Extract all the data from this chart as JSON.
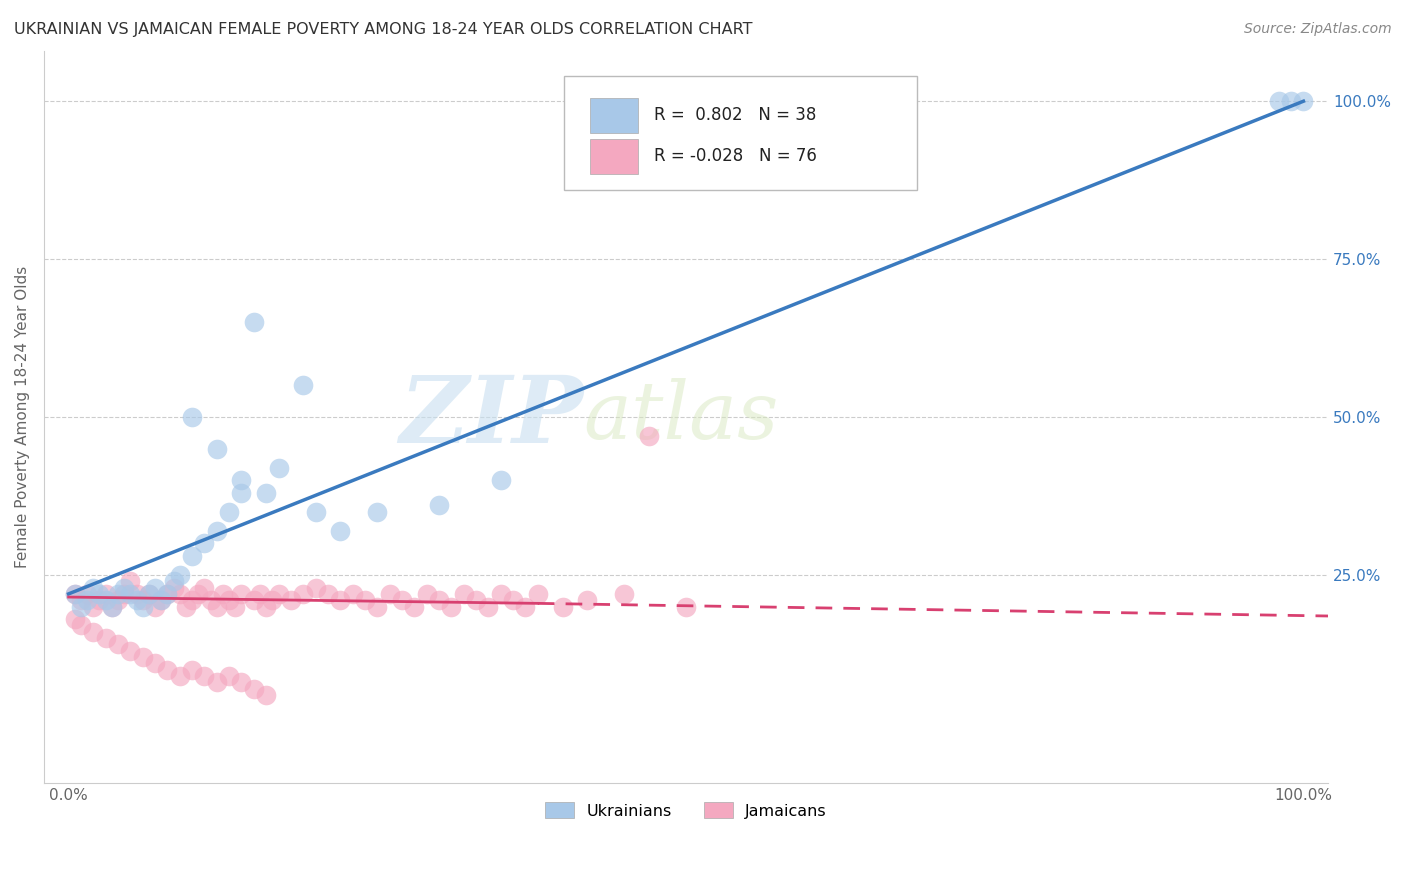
{
  "title": "UKRAINIAN VS JAMAICAN FEMALE POVERTY AMONG 18-24 YEAR OLDS CORRELATION CHART",
  "source": "Source: ZipAtlas.com",
  "ylabel": "Female Poverty Among 18-24 Year Olds",
  "xlim": [
    -0.02,
    1.02
  ],
  "ylim": [
    -0.08,
    1.08
  ],
  "x_ticks": [
    0.0,
    0.25,
    0.5,
    0.75,
    1.0
  ],
  "x_tick_labels": [
    "0.0%",
    "",
    "",
    "",
    "100.0%"
  ],
  "y_tick_labels_right": [
    "100.0%",
    "75.0%",
    "50.0%",
    "25.0%"
  ],
  "y_ticks_right": [
    1.0,
    0.75,
    0.5,
    0.25
  ],
  "ukrainian_R": 0.802,
  "ukrainian_N": 38,
  "jamaican_R": -0.028,
  "jamaican_N": 76,
  "ukrainian_color": "#a8c8e8",
  "jamaican_color": "#f4a8c0",
  "ukrainian_line_color": "#3a7abf",
  "jamaican_line_color": "#d84070",
  "watermark_zip": "ZIP",
  "watermark_atlas": "atlas",
  "background_color": "#ffffff",
  "grid_color": "#cccccc",
  "ukrainians_label": "Ukrainians",
  "jamaicans_label": "Jamaicans",
  "ukr_line_x0": 0.0,
  "ukr_line_y0": 0.22,
  "ukr_line_x1": 1.0,
  "ukr_line_y1": 1.0,
  "jam_line_solid_x0": 0.0,
  "jam_line_solid_y0": 0.215,
  "jam_line_solid_x1": 0.38,
  "jam_line_solid_y1": 0.205,
  "jam_line_dash_x0": 0.38,
  "jam_line_dash_y0": 0.205,
  "jam_line_dash_x1": 1.02,
  "jam_line_dash_y1": 0.185,
  "ukr_scatter_x": [
    0.005,
    0.01,
    0.015,
    0.02,
    0.025,
    0.03,
    0.035,
    0.04,
    0.045,
    0.05,
    0.055,
    0.06,
    0.065,
    0.07,
    0.075,
    0.08,
    0.085,
    0.09,
    0.1,
    0.11,
    0.12,
    0.13,
    0.14,
    0.15,
    0.17,
    0.19,
    0.22,
    0.25,
    0.1,
    0.12,
    0.14,
    0.16,
    0.2,
    0.3,
    0.35,
    0.98,
    0.99,
    1.0
  ],
  "ukr_scatter_y": [
    0.22,
    0.2,
    0.21,
    0.23,
    0.22,
    0.21,
    0.2,
    0.22,
    0.23,
    0.22,
    0.21,
    0.2,
    0.22,
    0.23,
    0.21,
    0.22,
    0.24,
    0.25,
    0.28,
    0.3,
    0.32,
    0.35,
    0.38,
    0.65,
    0.42,
    0.55,
    0.32,
    0.35,
    0.5,
    0.45,
    0.4,
    0.38,
    0.35,
    0.36,
    0.4,
    1.0,
    1.0,
    1.0
  ],
  "jam_scatter_x": [
    0.005,
    0.01,
    0.015,
    0.02,
    0.025,
    0.03,
    0.035,
    0.04,
    0.045,
    0.05,
    0.055,
    0.06,
    0.065,
    0.07,
    0.075,
    0.08,
    0.085,
    0.09,
    0.095,
    0.1,
    0.105,
    0.11,
    0.115,
    0.12,
    0.125,
    0.13,
    0.135,
    0.14,
    0.15,
    0.155,
    0.16,
    0.165,
    0.17,
    0.18,
    0.19,
    0.2,
    0.21,
    0.22,
    0.23,
    0.24,
    0.25,
    0.26,
    0.27,
    0.28,
    0.29,
    0.3,
    0.31,
    0.32,
    0.33,
    0.34,
    0.35,
    0.36,
    0.37,
    0.38,
    0.4,
    0.42,
    0.45,
    0.47,
    0.5,
    0.005,
    0.01,
    0.02,
    0.03,
    0.04,
    0.05,
    0.06,
    0.07,
    0.08,
    0.09,
    0.1,
    0.11,
    0.12,
    0.13,
    0.14,
    0.15,
    0.16
  ],
  "jam_scatter_y": [
    0.22,
    0.21,
    0.22,
    0.2,
    0.21,
    0.22,
    0.2,
    0.21,
    0.22,
    0.24,
    0.22,
    0.21,
    0.22,
    0.2,
    0.21,
    0.22,
    0.23,
    0.22,
    0.2,
    0.21,
    0.22,
    0.23,
    0.21,
    0.2,
    0.22,
    0.21,
    0.2,
    0.22,
    0.21,
    0.22,
    0.2,
    0.21,
    0.22,
    0.21,
    0.22,
    0.23,
    0.22,
    0.21,
    0.22,
    0.21,
    0.2,
    0.22,
    0.21,
    0.2,
    0.22,
    0.21,
    0.2,
    0.22,
    0.21,
    0.2,
    0.22,
    0.21,
    0.2,
    0.22,
    0.2,
    0.21,
    0.22,
    0.47,
    0.2,
    0.18,
    0.17,
    0.16,
    0.15,
    0.14,
    0.13,
    0.12,
    0.11,
    0.1,
    0.09,
    0.1,
    0.09,
    0.08,
    0.09,
    0.08,
    0.07,
    0.06
  ]
}
